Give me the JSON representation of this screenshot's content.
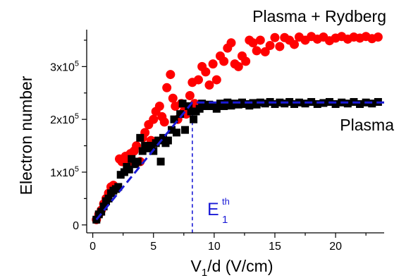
{
  "chart_data": {
    "type": "scatter",
    "xlabel": "V",
    "xlabel_sub": "1",
    "xlabel_rest": "/d (V/cm)",
    "ylabel": "Electron number",
    "xlim": [
      -0.5,
      24
    ],
    "ylim": [
      -15000,
      370000
    ],
    "x_ticks": [
      0,
      5,
      10,
      15,
      20
    ],
    "x_tick_labels": [
      "0",
      "5",
      "10",
      "15",
      "20"
    ],
    "y_ticks": [
      0,
      100000,
      200000,
      300000
    ],
    "y_tick_labels": [
      {
        "mant": "0",
        "exp": ""
      },
      {
        "mant": "1x10",
        "exp": "5"
      },
      {
        "mant": "2x10",
        "exp": "5"
      },
      {
        "mant": "3x10",
        "exp": "5"
      }
    ],
    "annotations": {
      "plasma_rydberg": "Plasma + Rydberg",
      "plasma": "Plasma",
      "threshold_main": "E",
      "threshold_sup": "th",
      "threshold_sub": "1"
    },
    "threshold_x": 8.2,
    "colors": {
      "plasma_rydberg": "#ff0000",
      "plasma": "#000000",
      "fit": "#1a1ad6"
    },
    "series": [
      {
        "name": "Plasma + Rydberg",
        "marker": "circle",
        "x": [
          0.3,
          0.5,
          0.7,
          0.9,
          1.1,
          1.3,
          1.5,
          1.7,
          1.9,
          2.2,
          2.4,
          2.7,
          2.9,
          3.1,
          3.4,
          3.6,
          3.9,
          4.1,
          4.3,
          4.6,
          4.8,
          5.0,
          5.2,
          5.5,
          5.7,
          5.9,
          6.1,
          6.4,
          6.6,
          6.8,
          7.0,
          7.3,
          7.5,
          7.7,
          8.0,
          8.2,
          8.4,
          8.7,
          9.0,
          9.3,
          9.6,
          9.9,
          10.2,
          10.5,
          10.8,
          11.1,
          11.4,
          11.7,
          12.0,
          12.3,
          12.6,
          12.9,
          13.2,
          13.5,
          13.8,
          14.2,
          14.6,
          15.0,
          15.4,
          15.8,
          16.2,
          16.6,
          17.0,
          17.5,
          18.0,
          18.5,
          19.0,
          19.5,
          20.0,
          20.5,
          21.0,
          21.5,
          22.0,
          22.5,
          23.0,
          23.5
        ],
        "y": [
          10000,
          20000,
          28000,
          40000,
          50000,
          60000,
          72000,
          75000,
          70000,
          125000,
          120000,
          130000,
          118000,
          135000,
          140000,
          150000,
          120000,
          165000,
          175000,
          190000,
          160000,
          200000,
          215000,
          225000,
          205000,
          195000,
          260000,
          285000,
          240000,
          225000,
          200000,
          230000,
          215000,
          210000,
          245000,
          270000,
          230000,
          275000,
          300000,
          290000,
          265000,
          305000,
          275000,
          320000,
          310000,
          335000,
          345000,
          305000,
          300000,
          320000,
          310000,
          350000,
          345000,
          330000,
          350000,
          328000,
          340000,
          355000,
          338000,
          355000,
          350000,
          342000,
          356000,
          350000,
          357000,
          352000,
          356000,
          349000,
          354000,
          357000,
          352000,
          356000,
          354000,
          357000,
          353000,
          356000
        ]
      },
      {
        "name": "Plasma",
        "marker": "square",
        "x": [
          0.3,
          0.5,
          0.7,
          0.9,
          1.1,
          1.3,
          1.5,
          1.7,
          1.9,
          2.1,
          2.3,
          2.6,
          2.8,
          3.0,
          3.2,
          3.5,
          3.7,
          3.9,
          4.1,
          4.3,
          4.6,
          4.8,
          5.0,
          5.2,
          5.4,
          5.6,
          5.8,
          6.0,
          6.2,
          6.5,
          6.7,
          6.9,
          7.2,
          7.4,
          7.6,
          7.9,
          8.1,
          8.3,
          8.5,
          8.8,
          9.0,
          9.3,
          9.6,
          9.9,
          10.2,
          10.5,
          10.8,
          11.1,
          11.4,
          11.7,
          12.0,
          12.3,
          12.6,
          12.9,
          13.2,
          13.5,
          13.8,
          14.2,
          14.6,
          15.0,
          15.4,
          15.8,
          16.2,
          16.6,
          17.0,
          17.5,
          18.0,
          18.5,
          19.0,
          19.5,
          20.0,
          20.5,
          21.0,
          21.5,
          22.0,
          22.5,
          23.0,
          23.5
        ],
        "y": [
          10000,
          20000,
          25000,
          35000,
          45000,
          50000,
          60000,
          65000,
          68000,
          72000,
          95000,
          100000,
          110000,
          105000,
          125000,
          115000,
          120000,
          165000,
          140000,
          150000,
          145000,
          150000,
          140000,
          155000,
          160000,
          120000,
          165000,
          155000,
          160000,
          180000,
          200000,
          175000,
          210000,
          230000,
          180000,
          225000,
          215000,
          200000,
          215000,
          220000,
          230000,
          225000,
          228000,
          225000,
          220000,
          230000,
          225000,
          232000,
          226000,
          230000,
          228000,
          232000,
          229000,
          226000,
          231000,
          228000,
          232000,
          230000,
          233000,
          229000,
          232000,
          230000,
          233000,
          229000,
          232000,
          230000,
          233000,
          229000,
          231000,
          233000,
          229000,
          232000,
          230000,
          233000,
          229000,
          232000,
          230000,
          233000
        ]
      },
      {
        "name": "",
        "marker": "dashed-line",
        "x": [
          0.3,
          8.2,
          24
        ],
        "y": [
          10000,
          232000,
          232000
        ]
      }
    ]
  }
}
